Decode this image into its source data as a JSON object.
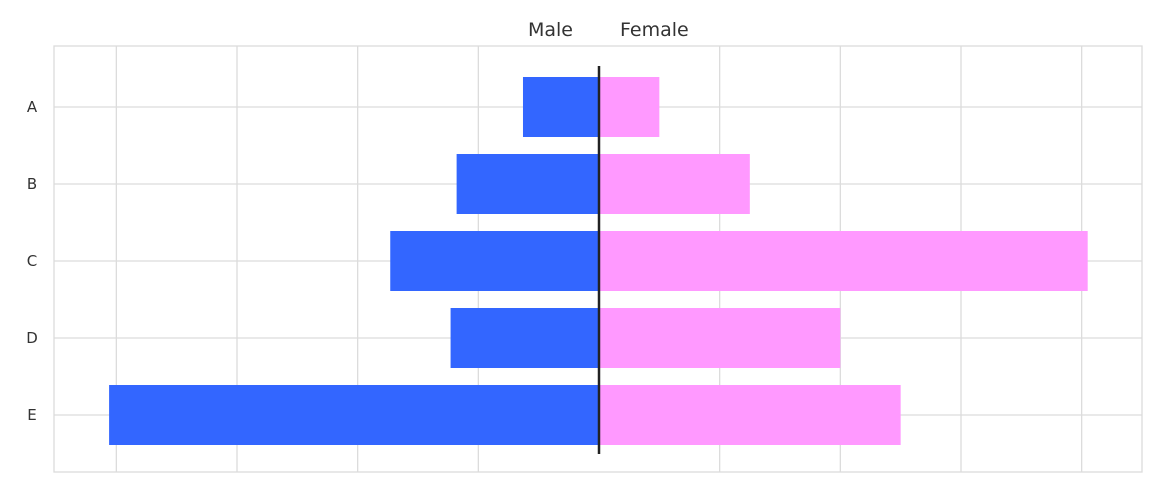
{
  "chart_data": {
    "type": "bar",
    "orientation": "horizontal",
    "layout": "diverging",
    "categories": [
      "A",
      "B",
      "C",
      "D",
      "E"
    ],
    "series": [
      {
        "name": "Male",
        "side": "left",
        "color": "#3366ff",
        "values": [
          6.3,
          11.8,
          17.3,
          12.3,
          40.6
        ]
      },
      {
        "name": "Female",
        "side": "right",
        "color": "#ff99ff",
        "values": [
          5.0,
          12.5,
          40.5,
          20.0,
          25.0
        ]
      }
    ],
    "xlim": [
      -45,
      45
    ],
    "grid": true,
    "x_tick_labels_shown": false,
    "center_line_color": "#222222"
  }
}
